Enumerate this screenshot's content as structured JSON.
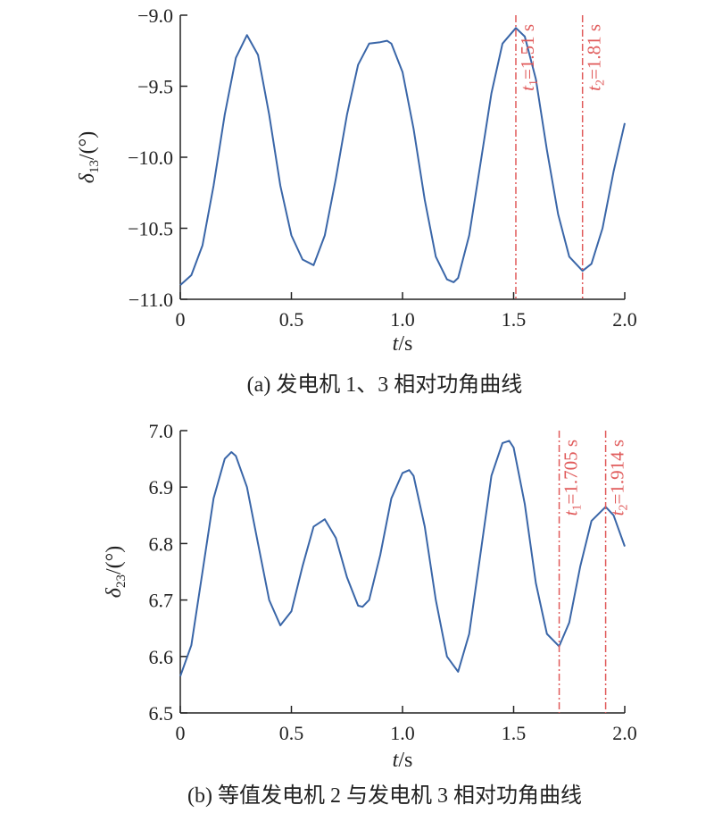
{
  "chart_data": [
    {
      "type": "line",
      "caption": "(a) 发电机 1、3 相对功角曲线",
      "xlabel_var": "t",
      "xlabel_unit": "/s",
      "ylabel_var": "δ",
      "ylabel_sub": "13",
      "ylabel_unit": "/(°)",
      "xlim": [
        0,
        2.0
      ],
      "ylim": [
        -11.0,
        -9.0
      ],
      "xticks": [
        0,
        0.5,
        1.0,
        1.5,
        2.0
      ],
      "xtick_labels": [
        "0",
        "0.5",
        "1.0",
        "1.5",
        "2.0"
      ],
      "yticks": [
        -9.0,
        -9.5,
        -10.0,
        -10.5,
        -11.0
      ],
      "ytick_labels": [
        "−9.0",
        "−9.5",
        "−10.0",
        "−10.5",
        "−11.0"
      ],
      "series_color": "#3a66a8",
      "marker_color": "#e05a5a",
      "series": [
        {
          "x": [
            0,
            0.05,
            0.1,
            0.15,
            0.2,
            0.25,
            0.3,
            0.35,
            0.4,
            0.45,
            0.5,
            0.55,
            0.6,
            0.65,
            0.7,
            0.75,
            0.8,
            0.85,
            0.9,
            0.93,
            0.95,
            1.0,
            1.05,
            1.1,
            1.15,
            1.2,
            1.23,
            1.25,
            1.3,
            1.35,
            1.4,
            1.45,
            1.51,
            1.55,
            1.6,
            1.65,
            1.7,
            1.75,
            1.81,
            1.85,
            1.9,
            1.95,
            2.0
          ],
          "y": [
            -10.9,
            -10.83,
            -10.62,
            -10.2,
            -9.7,
            -9.3,
            -9.14,
            -9.28,
            -9.7,
            -10.2,
            -10.55,
            -10.72,
            -10.76,
            -10.55,
            -10.15,
            -9.7,
            -9.35,
            -9.2,
            -9.19,
            -9.18,
            -9.2,
            -9.4,
            -9.8,
            -10.3,
            -10.7,
            -10.86,
            -10.88,
            -10.85,
            -10.55,
            -10.05,
            -9.55,
            -9.2,
            -9.09,
            -9.15,
            -9.45,
            -9.95,
            -10.4,
            -10.7,
            -10.8,
            -10.75,
            -10.5,
            -10.1,
            -9.76
          ]
        }
      ],
      "vlines": [
        {
          "x": 1.51,
          "sub": "1",
          "value": "=1.51 s"
        },
        {
          "x": 1.81,
          "sub": "2",
          "value": "=1.81 s"
        }
      ]
    },
    {
      "type": "line",
      "caption": "(b) 等值发电机 2 与发电机 3 相对功角曲线",
      "xlabel_var": "t",
      "xlabel_unit": "/s",
      "ylabel_var": "δ",
      "ylabel_sub": "23",
      "ylabel_unit": "/(°)",
      "xlim": [
        0,
        2.0
      ],
      "ylim": [
        6.5,
        7.0
      ],
      "xticks": [
        0,
        0.5,
        1.0,
        1.5,
        2.0
      ],
      "xtick_labels": [
        "0",
        "0.5",
        "1.0",
        "1.5",
        "2.0"
      ],
      "yticks": [
        7.0,
        6.9,
        6.8,
        6.7,
        6.6,
        6.5
      ],
      "ytick_labels": [
        "7.0",
        "6.9",
        "6.8",
        "6.7",
        "6.6",
        "6.5"
      ],
      "series_color": "#3a66a8",
      "marker_color": "#e05a5a",
      "series": [
        {
          "x": [
            0,
            0.05,
            0.1,
            0.15,
            0.2,
            0.23,
            0.25,
            0.3,
            0.35,
            0.4,
            0.45,
            0.5,
            0.55,
            0.6,
            0.65,
            0.7,
            0.75,
            0.8,
            0.82,
            0.85,
            0.9,
            0.95,
            1.0,
            1.03,
            1.05,
            1.1,
            1.15,
            1.2,
            1.25,
            1.3,
            1.35,
            1.4,
            1.45,
            1.48,
            1.5,
            1.55,
            1.6,
            1.65,
            1.705,
            1.75,
            1.8,
            1.85,
            1.914,
            1.95,
            2.0
          ],
          "y": [
            6.565,
            6.62,
            6.75,
            6.88,
            6.95,
            6.962,
            6.955,
            6.9,
            6.8,
            6.7,
            6.655,
            6.68,
            6.76,
            6.83,
            6.843,
            6.81,
            6.74,
            6.69,
            6.688,
            6.7,
            6.78,
            6.88,
            6.925,
            6.93,
            6.92,
            6.83,
            6.7,
            6.6,
            6.573,
            6.64,
            6.78,
            6.92,
            6.978,
            6.982,
            6.97,
            6.87,
            6.73,
            6.64,
            6.618,
            6.66,
            6.76,
            6.84,
            6.865,
            6.85,
            6.795
          ]
        }
      ],
      "vlines": [
        {
          "x": 1.705,
          "sub": "1",
          "value": "=1.705 s"
        },
        {
          "x": 1.914,
          "sub": "2",
          "value": "=1.914 s"
        }
      ]
    }
  ]
}
